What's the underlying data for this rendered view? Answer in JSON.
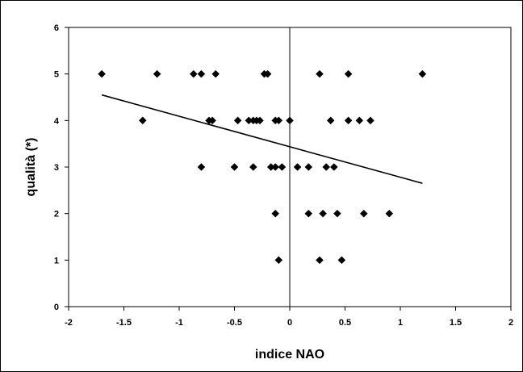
{
  "chart_data": {
    "type": "scatter",
    "title": "",
    "xlabel": "indice NAO",
    "ylabel": "qualità (*)",
    "xlim": [
      -2,
      2
    ],
    "ylim": [
      0,
      6
    ],
    "xticks": [
      -2,
      -1.5,
      -1,
      -0.5,
      0,
      0.5,
      1,
      1.5,
      2
    ],
    "xtick_labels": [
      "-2",
      "-1.5",
      "-1",
      "-0.5",
      "0",
      "0.5",
      "1",
      "1.5",
      "2"
    ],
    "yticks": [
      0,
      1,
      2,
      3,
      4,
      5,
      6
    ],
    "ytick_labels": [
      "0",
      "1",
      "2",
      "3",
      "4",
      "5",
      "6"
    ],
    "grid": false,
    "legend": "none",
    "marker": "diamond",
    "marker_color": "#000000",
    "points": [
      {
        "x": -1.7,
        "y": 5
      },
      {
        "x": -1.2,
        "y": 5
      },
      {
        "x": -0.87,
        "y": 5
      },
      {
        "x": -0.8,
        "y": 5
      },
      {
        "x": -0.67,
        "y": 5
      },
      {
        "x": -0.23,
        "y": 5
      },
      {
        "x": -0.2,
        "y": 5
      },
      {
        "x": 0.27,
        "y": 5
      },
      {
        "x": 0.53,
        "y": 5
      },
      {
        "x": 1.2,
        "y": 5
      },
      {
        "x": -1.33,
        "y": 4
      },
      {
        "x": -0.73,
        "y": 4
      },
      {
        "x": -0.7,
        "y": 4
      },
      {
        "x": -0.47,
        "y": 4
      },
      {
        "x": -0.37,
        "y": 4
      },
      {
        "x": -0.33,
        "y": 4
      },
      {
        "x": -0.3,
        "y": 4
      },
      {
        "x": -0.27,
        "y": 4
      },
      {
        "x": -0.13,
        "y": 4
      },
      {
        "x": -0.1,
        "y": 4
      },
      {
        "x": 0.0,
        "y": 4
      },
      {
        "x": 0.37,
        "y": 4
      },
      {
        "x": 0.53,
        "y": 4
      },
      {
        "x": 0.63,
        "y": 4
      },
      {
        "x": 0.73,
        "y": 4
      },
      {
        "x": -0.8,
        "y": 3
      },
      {
        "x": -0.5,
        "y": 3
      },
      {
        "x": -0.33,
        "y": 3
      },
      {
        "x": -0.17,
        "y": 3
      },
      {
        "x": -0.13,
        "y": 3
      },
      {
        "x": -0.07,
        "y": 3
      },
      {
        "x": 0.07,
        "y": 3
      },
      {
        "x": 0.17,
        "y": 3
      },
      {
        "x": 0.33,
        "y": 3
      },
      {
        "x": 0.4,
        "y": 3
      },
      {
        "x": -0.13,
        "y": 2
      },
      {
        "x": 0.17,
        "y": 2
      },
      {
        "x": 0.3,
        "y": 2
      },
      {
        "x": 0.43,
        "y": 2
      },
      {
        "x": 0.67,
        "y": 2
      },
      {
        "x": 0.9,
        "y": 2
      },
      {
        "x": -0.1,
        "y": 1
      },
      {
        "x": 0.27,
        "y": 1
      },
      {
        "x": 0.47,
        "y": 1
      }
    ],
    "trendline": {
      "x": [
        -1.7,
        1.2
      ],
      "y": [
        4.55,
        2.65
      ]
    }
  }
}
